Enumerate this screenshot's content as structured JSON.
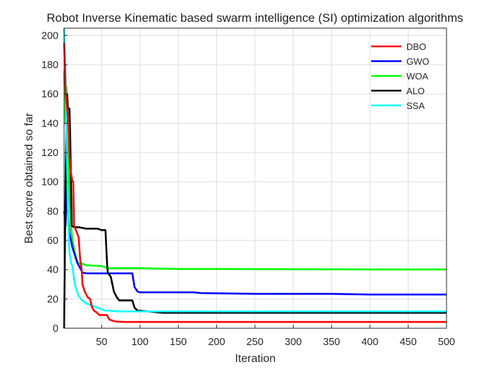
{
  "chart_data": {
    "type": "line",
    "title": "Robot Inverse Kinematic based swarm intelligence (SI) optimization algorithms",
    "xlabel": "Iteration",
    "ylabel": "Best score obtained so far",
    "xlim": [
      1,
      500
    ],
    "ylim": [
      0,
      205
    ],
    "xticks": [
      50,
      100,
      150,
      200,
      250,
      300,
      350,
      400,
      450,
      500
    ],
    "yticks": [
      0,
      20,
      40,
      60,
      80,
      100,
      120,
      140,
      160,
      180,
      200
    ],
    "grid": true,
    "legend_position": "top-right",
    "series": [
      {
        "name": "DBO",
        "color": "#ff0000",
        "points": [
          [
            1,
            195
          ],
          [
            2,
            180
          ],
          [
            3,
            160
          ],
          [
            5,
            150
          ],
          [
            7,
            140
          ],
          [
            8,
            120
          ],
          [
            9,
            110
          ],
          [
            10,
            106
          ],
          [
            12,
            100
          ],
          [
            13,
            100
          ],
          [
            14,
            70
          ],
          [
            18,
            65
          ],
          [
            20,
            62
          ],
          [
            22,
            47
          ],
          [
            24,
            40
          ],
          [
            25,
            30
          ],
          [
            28,
            25
          ],
          [
            32,
            21
          ],
          [
            35,
            20
          ],
          [
            37,
            15
          ],
          [
            40,
            12
          ],
          [
            43,
            11
          ],
          [
            45,
            10
          ],
          [
            47,
            9
          ],
          [
            50,
            9
          ],
          [
            57,
            9
          ],
          [
            60,
            6
          ],
          [
            65,
            5
          ],
          [
            70,
            4.5
          ],
          [
            80,
            4.3
          ],
          [
            100,
            4.3
          ],
          [
            150,
            4.3
          ],
          [
            200,
            4.3
          ],
          [
            300,
            4.3
          ],
          [
            400,
            4.3
          ],
          [
            500,
            4.3
          ]
        ]
      },
      {
        "name": "GWO",
        "color": "#0000ff",
        "points": [
          [
            1,
            80
          ],
          [
            2,
            75
          ],
          [
            3,
            70
          ],
          [
            4,
            100
          ],
          [
            5,
            95
          ],
          [
            6,
            78
          ],
          [
            8,
            65
          ],
          [
            10,
            60
          ],
          [
            12,
            55
          ],
          [
            15,
            50
          ],
          [
            18,
            45
          ],
          [
            20,
            43
          ],
          [
            25,
            38
          ],
          [
            30,
            37.5
          ],
          [
            50,
            37.5
          ],
          [
            70,
            37.5
          ],
          [
            90,
            37.5
          ],
          [
            93,
            28
          ],
          [
            97,
            25
          ],
          [
            100,
            24.5
          ],
          [
            150,
            24.5
          ],
          [
            170,
            24.5
          ],
          [
            180,
            24
          ],
          [
            250,
            23.5
          ],
          [
            300,
            23.5
          ],
          [
            350,
            23.5
          ],
          [
            400,
            23
          ],
          [
            450,
            23
          ],
          [
            500,
            23
          ]
        ]
      },
      {
        "name": "WOA",
        "color": "#00ff00",
        "points": [
          [
            1,
            175
          ],
          [
            2,
            160
          ],
          [
            3,
            140
          ],
          [
            4,
            165
          ],
          [
            5,
            150
          ],
          [
            6,
            130
          ],
          [
            8,
            90
          ],
          [
            10,
            70
          ],
          [
            12,
            60
          ],
          [
            15,
            52
          ],
          [
            18,
            46
          ],
          [
            20,
            44.5
          ],
          [
            25,
            44
          ],
          [
            30,
            43
          ],
          [
            50,
            42.5
          ],
          [
            55,
            41.5
          ],
          [
            60,
            41
          ],
          [
            100,
            41
          ],
          [
            150,
            40.5
          ],
          [
            200,
            40.5
          ],
          [
            300,
            40.3
          ],
          [
            400,
            40.2
          ],
          [
            500,
            40.2
          ]
        ]
      },
      {
        "name": "ALO",
        "color": "#000000",
        "points": [
          [
            1,
            0
          ],
          [
            2,
            50
          ],
          [
            3,
            100
          ],
          [
            4,
            130
          ],
          [
            5,
            160
          ],
          [
            6,
            150
          ],
          [
            8,
            150
          ],
          [
            9,
            130
          ],
          [
            10,
            100
          ],
          [
            11,
            70
          ],
          [
            14,
            69
          ],
          [
            20,
            69
          ],
          [
            30,
            68
          ],
          [
            45,
            68
          ],
          [
            50,
            67
          ],
          [
            55,
            67
          ],
          [
            57,
            45
          ],
          [
            58,
            38
          ],
          [
            62,
            35
          ],
          [
            66,
            25
          ],
          [
            70,
            21
          ],
          [
            73,
            19
          ],
          [
            90,
            19
          ],
          [
            93,
            14
          ],
          [
            97,
            12
          ],
          [
            100,
            12
          ],
          [
            130,
            10.5
          ],
          [
            200,
            10.5
          ],
          [
            300,
            10.5
          ],
          [
            400,
            10.5
          ],
          [
            500,
            10.5
          ]
        ]
      },
      {
        "name": "SSA",
        "color": "#00ffff",
        "points": [
          [
            1,
            205
          ],
          [
            2,
            190
          ],
          [
            3,
            170
          ],
          [
            4,
            140
          ],
          [
            5,
            110
          ],
          [
            6,
            80
          ],
          [
            7,
            65
          ],
          [
            8,
            52
          ],
          [
            10,
            45
          ],
          [
            12,
            42
          ],
          [
            15,
            30
          ],
          [
            18,
            25
          ],
          [
            20,
            22
          ],
          [
            25,
            19
          ],
          [
            30,
            17
          ],
          [
            40,
            15
          ],
          [
            45,
            14
          ],
          [
            50,
            13
          ],
          [
            55,
            12
          ],
          [
            60,
            12
          ],
          [
            70,
            11.5
          ],
          [
            80,
            11.5
          ],
          [
            100,
            11.5
          ],
          [
            130,
            11.5
          ],
          [
            200,
            11.5
          ],
          [
            300,
            11.5
          ],
          [
            400,
            11.5
          ],
          [
            500,
            11.5
          ]
        ]
      }
    ]
  }
}
